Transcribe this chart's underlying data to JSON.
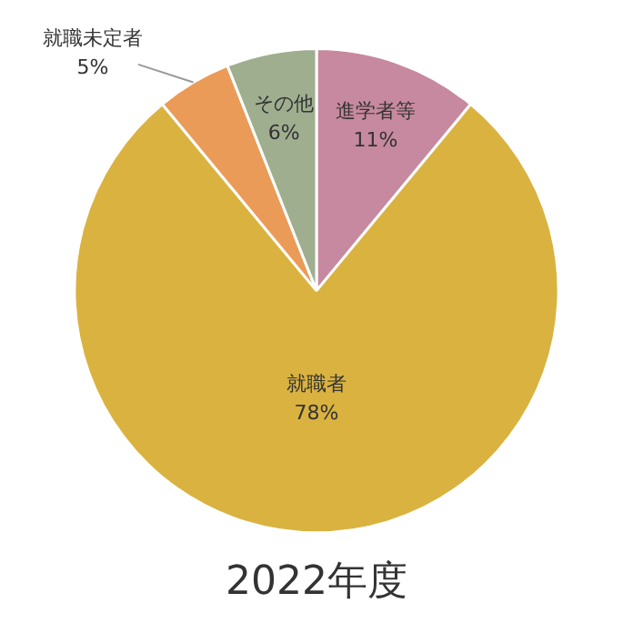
{
  "chart_data": {
    "type": "pie",
    "title": "2022年度",
    "categories": [
      "進学者等",
      "就職者",
      "就職未定者",
      "その他"
    ],
    "values": [
      11,
      78,
      5,
      6
    ],
    "value_labels": [
      "11%",
      "78%",
      "5%",
      "6%"
    ],
    "colors": [
      "#c7899f",
      "#dab23f",
      "#eb9b58",
      "#9fae8f"
    ],
    "legend": false
  }
}
